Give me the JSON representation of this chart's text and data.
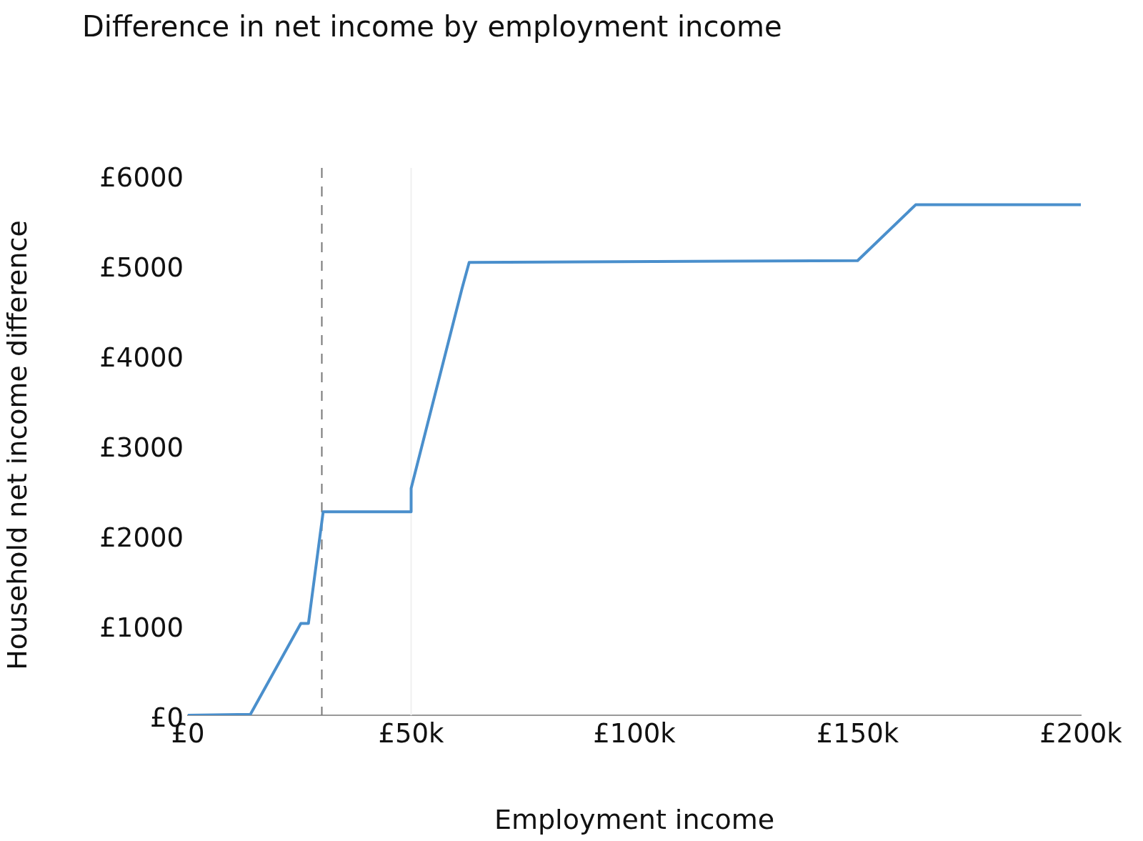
{
  "chart_data": {
    "type": "line",
    "title": "Difference in net income by employment income",
    "xlabel": "Employment income",
    "ylabel": "Household net income difference",
    "x": [
      0,
      14000,
      25300,
      27000,
      30300,
      50000,
      50000,
      61400,
      63000,
      150000,
      163000,
      200000
    ],
    "series": [
      {
        "color": "#4a8fcc",
        "values": [
          0,
          10,
          1020,
          1020,
          2260,
          2260,
          2520,
          4740,
          5030,
          5050,
          5670,
          5670
        ]
      }
    ],
    "xlim": [
      0,
      200000
    ],
    "xticks": [
      {
        "value": 0,
        "label": "£0"
      },
      {
        "value": 50000,
        "label": "£50k"
      },
      {
        "value": 100000,
        "label": "£100k"
      },
      {
        "value": 150000,
        "label": "£150k"
      },
      {
        "value": 200000,
        "label": "£200k"
      }
    ],
    "ylim": [
      0,
      6000
    ],
    "yticks": [
      {
        "value": 0,
        "label": "£0"
      },
      {
        "value": 1000,
        "label": "£1000"
      },
      {
        "value": 2000,
        "label": "£2000"
      },
      {
        "value": 3000,
        "label": "£3000"
      },
      {
        "value": 4000,
        "label": "£4000"
      },
      {
        "value": 5000,
        "label": "£5000"
      },
      {
        "value": 6000,
        "label": "£6000"
      }
    ],
    "ref_lines": [
      {
        "axis": "x",
        "value": 30000,
        "color": "#777777",
        "line_style": "dashed"
      },
      {
        "axis": "x",
        "value": 50000,
        "color": "#f0f0f0",
        "line_style": "solid"
      }
    ],
    "grid": false,
    "legend": false,
    "marker": "none",
    "line_style": "solid"
  }
}
